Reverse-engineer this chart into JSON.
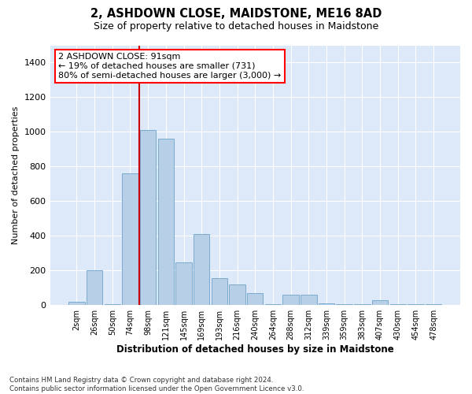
{
  "title": "2, ASHDOWN CLOSE, MAIDSTONE, ME16 8AD",
  "subtitle": "Size of property relative to detached houses in Maidstone",
  "xlabel": "Distribution of detached houses by size in Maidstone",
  "ylabel": "Number of detached properties",
  "bar_labels": [
    "2sqm",
    "26sqm",
    "50sqm",
    "74sqm",
    "98sqm",
    "121sqm",
    "145sqm",
    "169sqm",
    "193sqm",
    "216sqm",
    "240sqm",
    "264sqm",
    "288sqm",
    "312sqm",
    "339sqm",
    "359sqm",
    "383sqm",
    "407sqm",
    "430sqm",
    "454sqm",
    "478sqm"
  ],
  "bar_values": [
    20,
    200,
    5,
    760,
    1010,
    960,
    245,
    410,
    155,
    120,
    70,
    5,
    60,
    60,
    10,
    5,
    5,
    30,
    5,
    5,
    5
  ],
  "bar_color": "#b8cfe8",
  "bar_edgecolor": "#7aaad0",
  "vline_color": "#cc0000",
  "annotation_text": "2 ASHDOWN CLOSE: 91sqm\n← 19% of detached houses are smaller (731)\n80% of semi-detached houses are larger (3,000) →",
  "ylim_max": 1500,
  "yticks": [
    0,
    200,
    400,
    600,
    800,
    1000,
    1200,
    1400
  ],
  "bg_color": "#dde8f8",
  "grid_color": "#ffffff",
  "footnote": "Contains HM Land Registry data © Crown copyright and database right 2024.\nContains public sector information licensed under the Open Government Licence v3.0."
}
